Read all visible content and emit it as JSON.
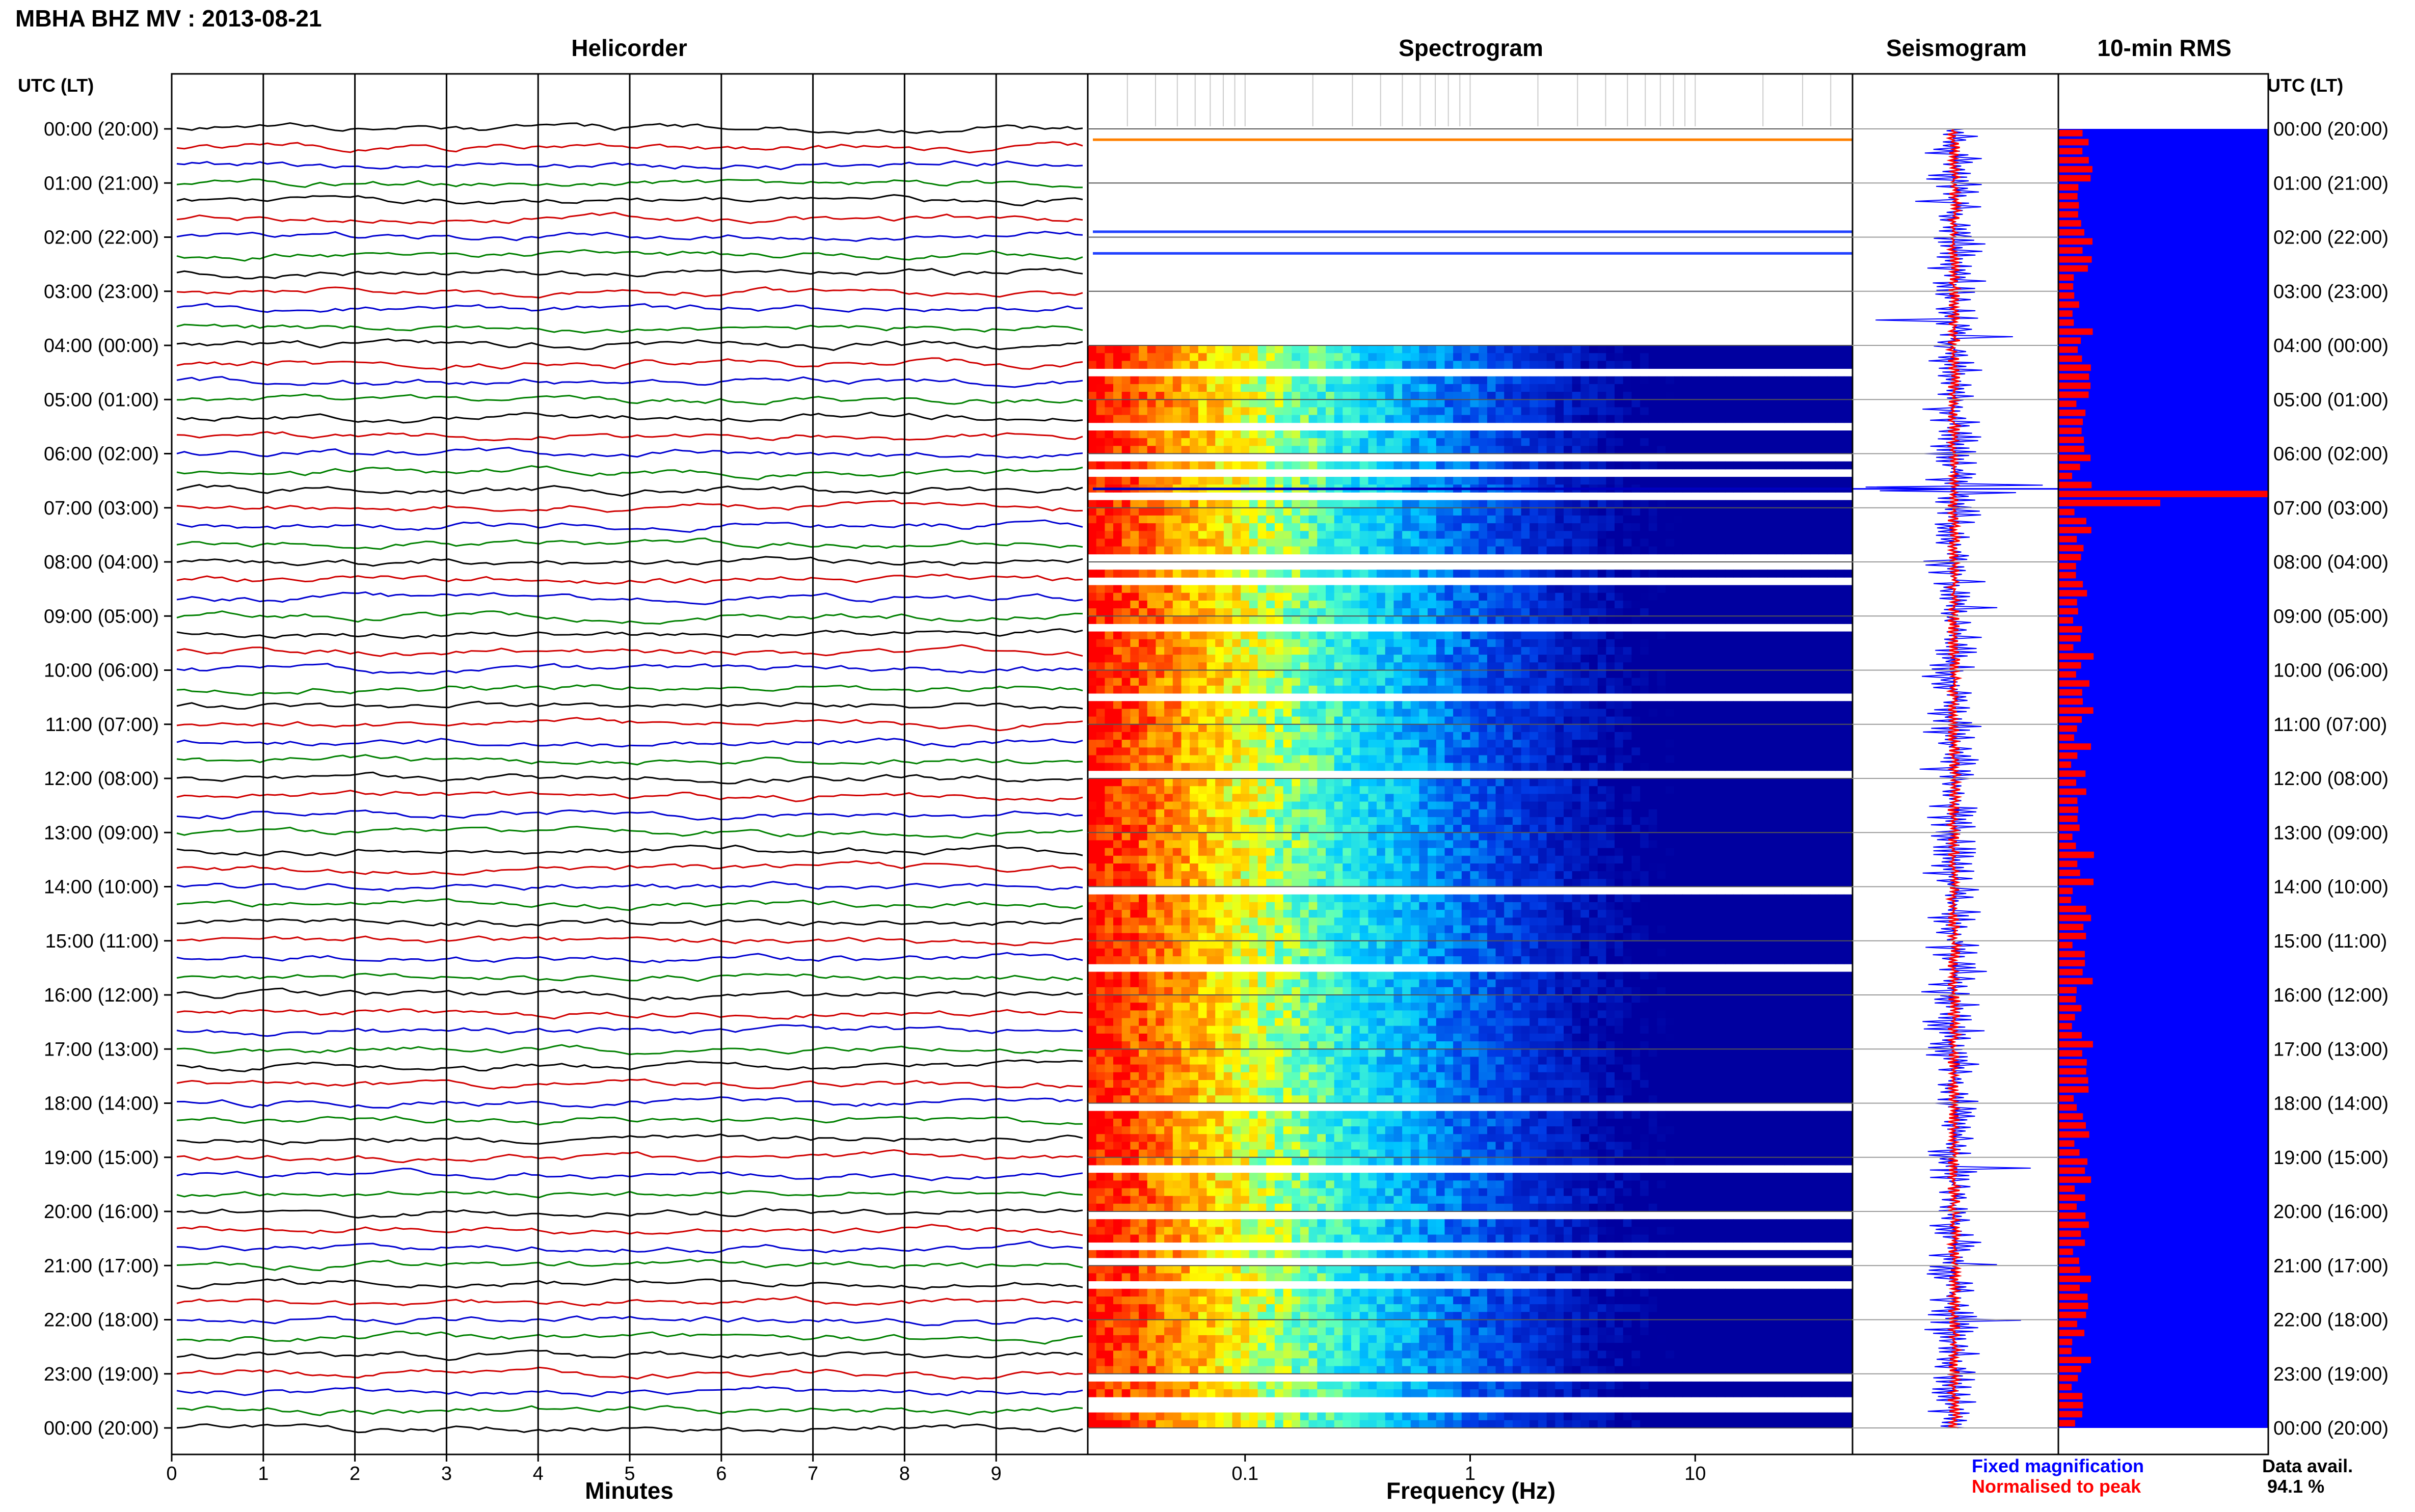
{
  "title": "MBHA BHZ MV : 2013-08-21",
  "panels": {
    "helicorder": "Helicorder",
    "spectrogram": "Spectrogram",
    "seismogram": "Seismogram",
    "rms": "10-min RMS"
  },
  "time_axis": {
    "header": "UTC (LT)",
    "labels": [
      "00:00 (20:00)",
      "01:00 (21:00)",
      "02:00 (22:00)",
      "03:00 (23:00)",
      "04:00 (00:00)",
      "05:00 (01:00)",
      "06:00 (02:00)",
      "07:00 (03:00)",
      "08:00 (04:00)",
      "09:00 (05:00)",
      "10:00 (06:00)",
      "11:00 (07:00)",
      "12:00 (08:00)",
      "13:00 (09:00)",
      "14:00 (10:00)",
      "15:00 (11:00)",
      "16:00 (12:00)",
      "17:00 (13:00)",
      "18:00 (14:00)",
      "19:00 (15:00)",
      "20:00 (16:00)",
      "21:00 (17:00)",
      "22:00 (18:00)",
      "23:00 (19:00)",
      "00:00 (20:00)"
    ]
  },
  "helicorder_axis": {
    "label": "Minutes",
    "ticks": [
      "0",
      "1",
      "2",
      "3",
      "4",
      "5",
      "6",
      "7",
      "8",
      "9"
    ],
    "trace_colors": [
      "#000000",
      "#d00000",
      "#0000d0",
      "#008000"
    ]
  },
  "spectrogram_axis": {
    "label": "Frequency (Hz)",
    "ticks": [
      "0.1",
      "1",
      "10"
    ],
    "scale": "log",
    "range_hz": [
      0.02,
      50
    ],
    "colormap": [
      "#ff0000",
      "#ff8000",
      "#ffff00",
      "#00ffff",
      "#0000a0"
    ]
  },
  "legend": {
    "fixed": "Fixed magnification",
    "fixed_color": "#0000ff",
    "normalised": "Normalised to peak",
    "normalised_color": "#ff0000"
  },
  "data_availability": {
    "label": "Data avail.",
    "value": "94.1 %"
  },
  "chart_data": {
    "type": "heatmap",
    "title": "MBHA BHZ MV : 2013-08-21",
    "panels": [
      "Helicorder",
      "Spectrogram",
      "Seismogram",
      "10-min RMS"
    ],
    "y": {
      "label": "UTC (LT)",
      "range_hours": [
        0,
        24
      ]
    },
    "helicorder": {
      "xlabel": "Minutes",
      "xlim": [
        0,
        10
      ],
      "data_start_hour": 0
    },
    "spectrogram": {
      "xlabel": "Frequency (Hz)",
      "xlim": [
        0.02,
        50
      ],
      "xscale": "log",
      "data_start_hour": 4.0
    },
    "data_gaps_hours": [
      [
        0.0,
        4.0
      ]
    ],
    "spikes_hours": [
      0.2,
      1.9,
      2.3,
      6.65
    ],
    "rms_peak_hour": 6.65,
    "data_availability_percent": 94.1
  }
}
